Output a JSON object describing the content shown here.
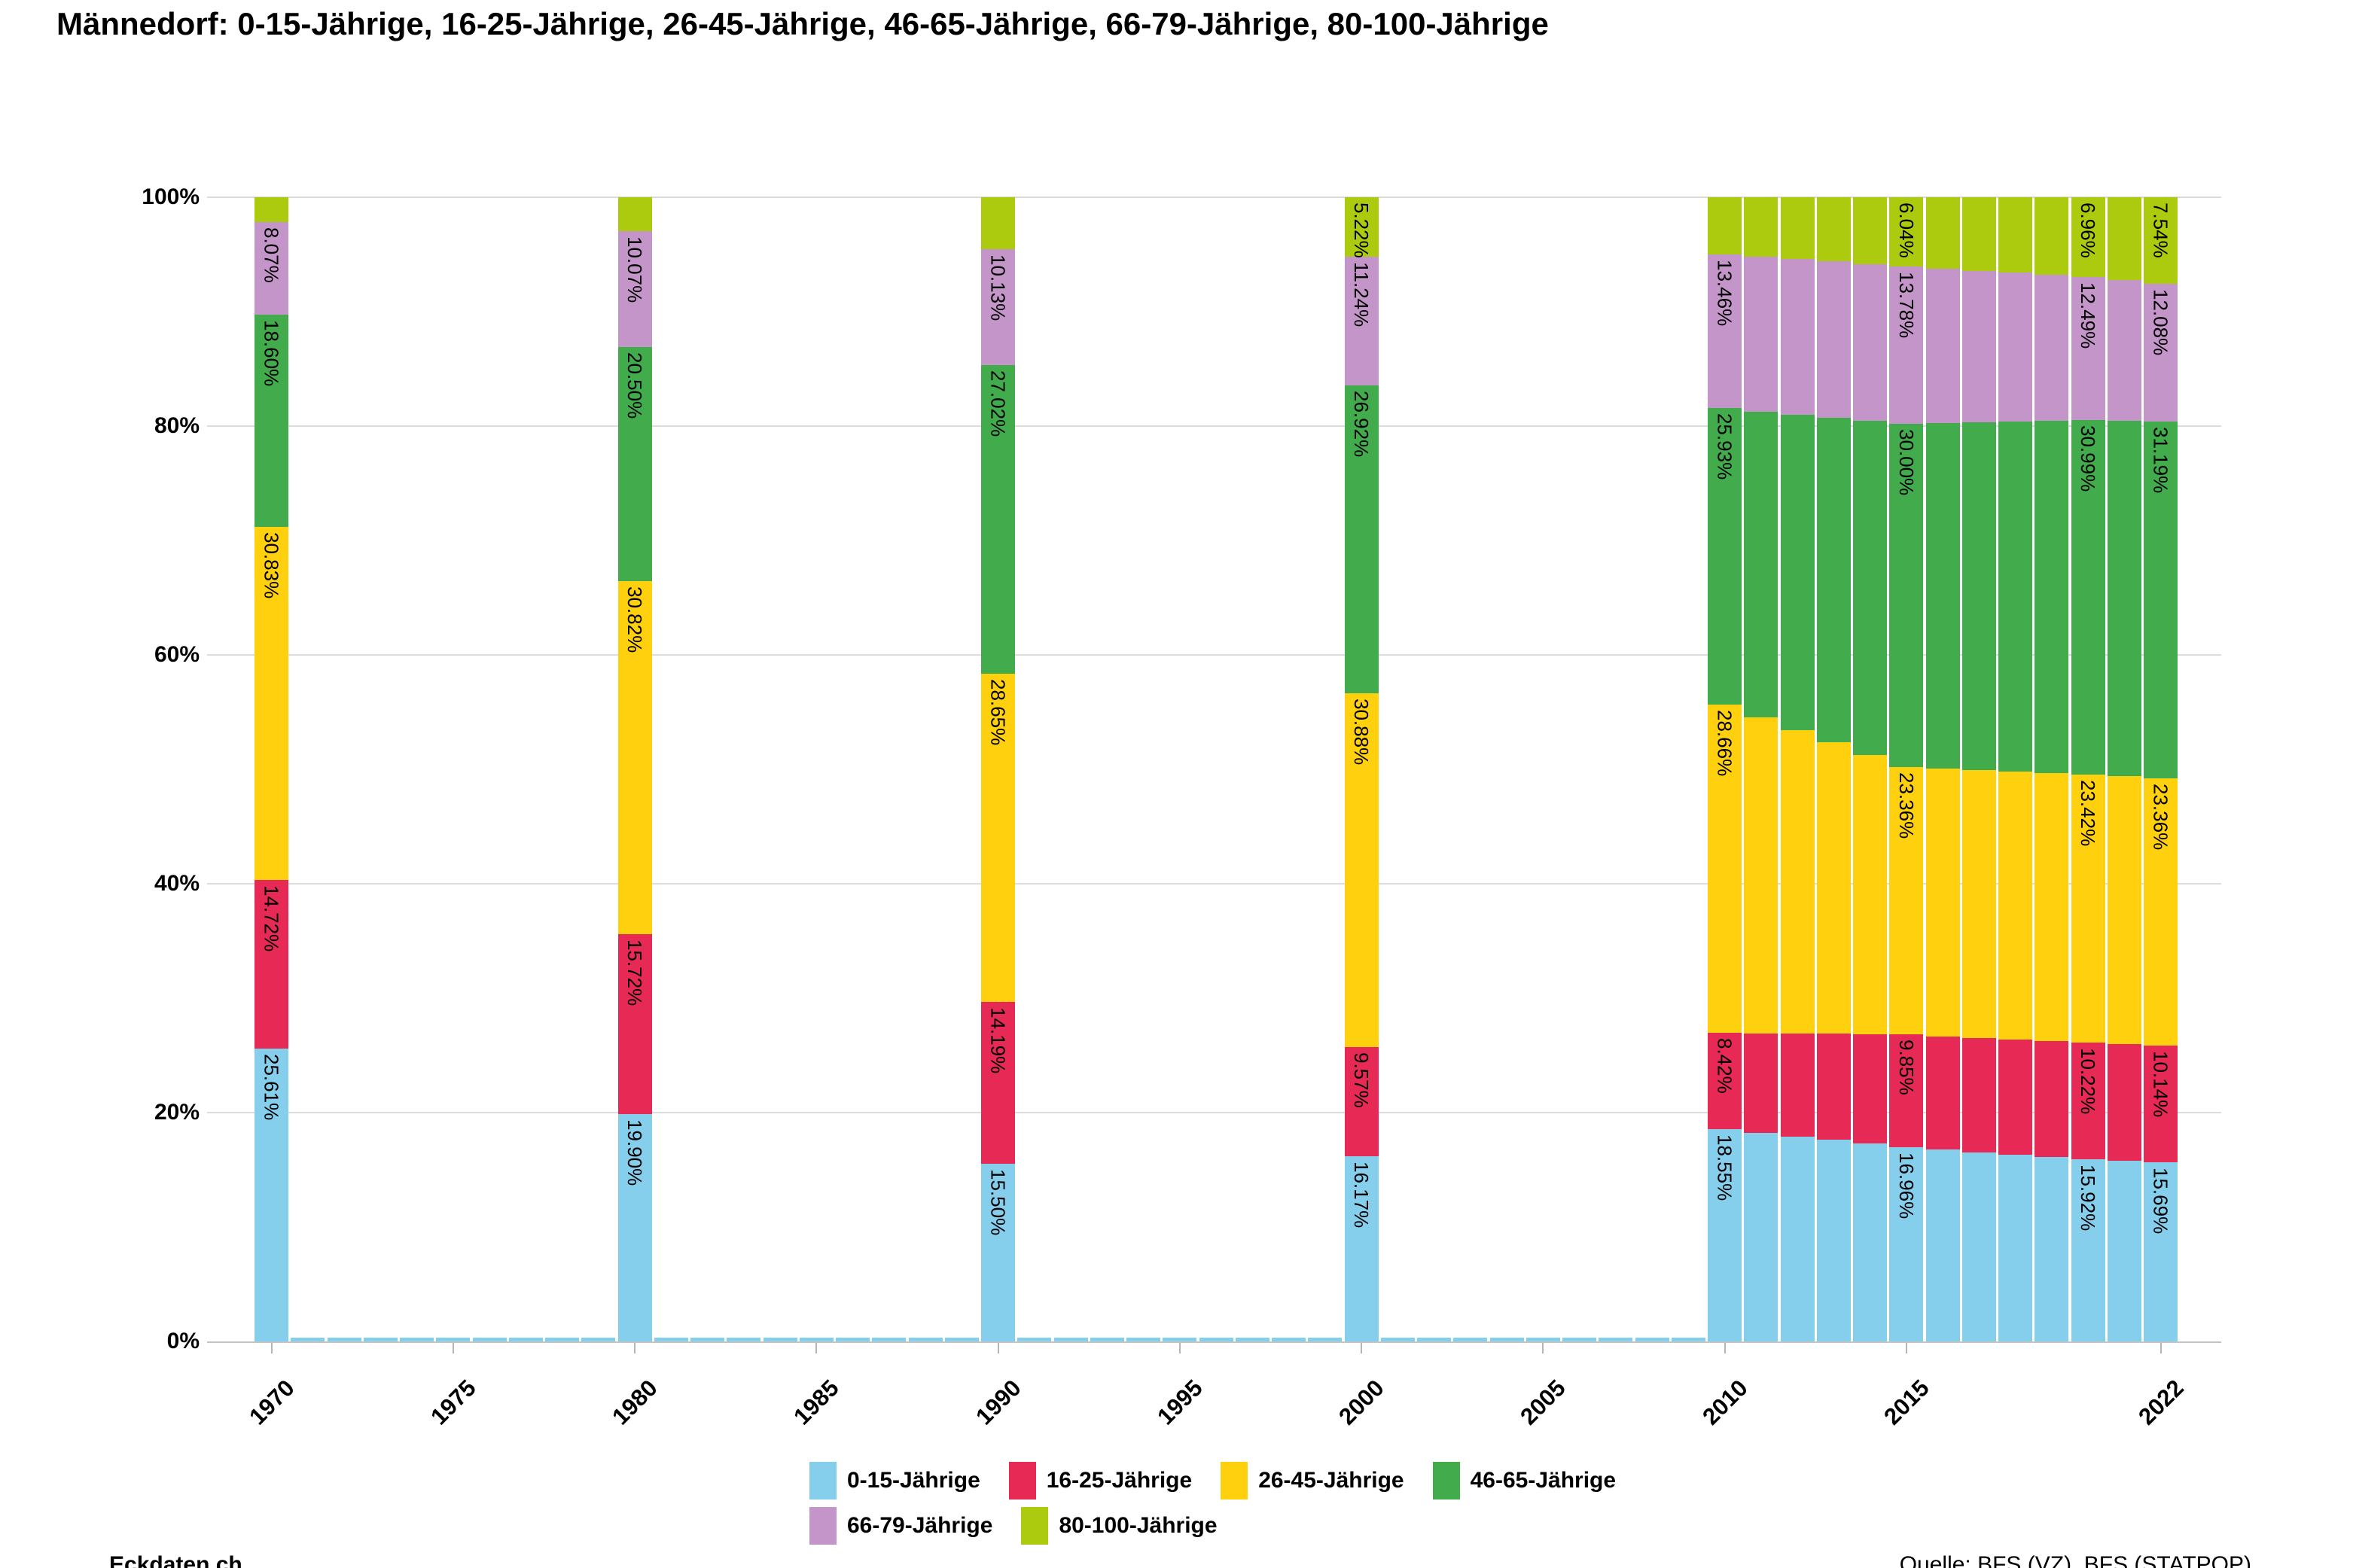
{
  "title": "Männedorf: 0-15-Jährige, 16-25-Jährige, 26-45-Jährige, 46-65-Jährige, 66-79-Jährige, 80-100-Jährige",
  "footer": {
    "left": "Eckdaten.ch",
    "right": "Quelle: BFS (VZ), BFS (STATPOP)"
  },
  "chart_data": {
    "type": "bar",
    "stacked": true,
    "title": "Männedorf: 0-15-Jährige, 16-25-Jährige, 26-45-Jährige, 46-65-Jährige, 66-79-Jährige, 80-100-Jährige",
    "xlabel": "",
    "ylabel": "",
    "ylim": [
      0,
      100
    ],
    "grid": true,
    "legend_position": "bottom",
    "yticks": [
      "0%",
      "20%",
      "40%",
      "60%",
      "80%",
      "100%"
    ],
    "yticks_pct": [
      0,
      20,
      40,
      60,
      80,
      100
    ],
    "xticks": [
      1970,
      1975,
      1980,
      1985,
      1990,
      1995,
      2000,
      2005,
      2010,
      2015,
      2022
    ],
    "categories": [
      1970,
      1980,
      1990,
      2000,
      2010,
      2011,
      2012,
      2013,
      2014,
      2015,
      2016,
      2017,
      2018,
      2019,
      2020,
      2021,
      2022
    ],
    "labeled_years": [
      1970,
      1980,
      1990,
      2000,
      2010,
      2015,
      2020,
      2022
    ],
    "estimated_years": [
      2011,
      2012,
      2013,
      2014,
      2016,
      2017,
      2018,
      2019,
      2021
    ],
    "label_min_pct": 5,
    "series": [
      {
        "name": "0-15-Jährige",
        "color": "#85CEEC",
        "values": [
          25.61,
          19.9,
          15.5,
          16.17,
          18.55,
          18.23,
          17.91,
          17.6,
          17.28,
          16.96,
          16.75,
          16.54,
          16.33,
          16.13,
          15.92,
          15.81,
          15.69
        ]
      },
      {
        "name": "16-25-Jährige",
        "color": "#E62A55",
        "values": [
          14.72,
          15.72,
          14.19,
          9.57,
          8.42,
          8.71,
          8.99,
          9.28,
          9.56,
          9.85,
          9.92,
          10.0,
          10.07,
          10.15,
          10.22,
          10.18,
          10.14
        ]
      },
      {
        "name": "26-45-Jährige",
        "color": "#FFD00E",
        "values": [
          30.83,
          30.82,
          28.65,
          30.88,
          28.66,
          27.6,
          26.54,
          25.48,
          24.42,
          23.36,
          23.37,
          23.38,
          23.4,
          23.41,
          23.42,
          23.39,
          23.36
        ]
      },
      {
        "name": "46-65-Jährige",
        "color": "#42AC4C",
        "values": [
          18.6,
          20.5,
          27.02,
          26.92,
          25.93,
          26.74,
          27.56,
          28.37,
          29.19,
          30.0,
          30.2,
          30.4,
          30.59,
          30.79,
          30.99,
          31.09,
          31.19
        ]
      },
      {
        "name": "66-79-Jährige",
        "color": "#C495C8",
        "values": [
          8.07,
          10.07,
          10.13,
          11.24,
          13.46,
          13.53,
          13.59,
          13.65,
          13.72,
          13.78,
          13.52,
          13.26,
          13.0,
          12.75,
          12.49,
          12.28,
          12.08
        ]
      },
      {
        "name": "80-100-Jährige",
        "color": "#ACCB0E",
        "values": [
          2.17,
          2.99,
          4.51,
          5.22,
          4.98,
          5.19,
          5.41,
          5.62,
          5.83,
          6.04,
          6.24,
          6.42,
          6.61,
          6.77,
          6.96,
          7.25,
          7.54
        ]
      }
    ]
  }
}
